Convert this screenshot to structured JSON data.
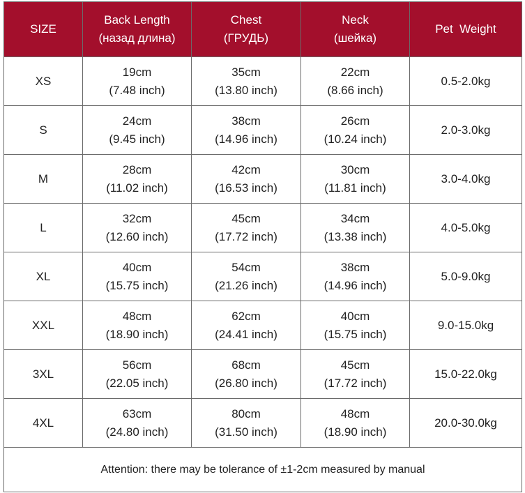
{
  "header": {
    "size": "SIZE",
    "back_length": {
      "line1": "Back Length",
      "line2": "(назад длина)"
    },
    "chest": {
      "line1": "Chest",
      "line2": "(ГРУДЬ)"
    },
    "neck": {
      "line1": "Neck",
      "line2": "(шейка)"
    },
    "pet_weight": "Pet  Weight"
  },
  "rows": [
    {
      "size": "XS",
      "back": {
        "cm": "19cm",
        "inch": "(7.48 inch)"
      },
      "chest": {
        "cm": "35cm",
        "inch": "(13.80 inch)"
      },
      "neck": {
        "cm": "22cm",
        "inch": "(8.66 inch)"
      },
      "weight": "0.5-2.0kg"
    },
    {
      "size": "S",
      "back": {
        "cm": "24cm",
        "inch": "(9.45 inch)"
      },
      "chest": {
        "cm": "38cm",
        "inch": "(14.96 inch)"
      },
      "neck": {
        "cm": "26cm",
        "inch": "(10.24 inch)"
      },
      "weight": "2.0-3.0kg"
    },
    {
      "size": "M",
      "back": {
        "cm": "28cm",
        "inch": "(11.02 inch)"
      },
      "chest": {
        "cm": "42cm",
        "inch": "(16.53 inch)"
      },
      "neck": {
        "cm": "30cm",
        "inch": "(11.81 inch)"
      },
      "weight": "3.0-4.0kg"
    },
    {
      "size": "L",
      "back": {
        "cm": "32cm",
        "inch": "(12.60 inch)"
      },
      "chest": {
        "cm": "45cm",
        "inch": "(17.72 inch)"
      },
      "neck": {
        "cm": "34cm",
        "inch": "(13.38 inch)"
      },
      "weight": "4.0-5.0kg"
    },
    {
      "size": "XL",
      "back": {
        "cm": "40cm",
        "inch": "(15.75 inch)"
      },
      "chest": {
        "cm": "54cm",
        "inch": "(21.26 inch)"
      },
      "neck": {
        "cm": "38cm",
        "inch": "(14.96 inch)"
      },
      "weight": "5.0-9.0kg"
    },
    {
      "size": "XXL",
      "back": {
        "cm": "48cm",
        "inch": "(18.90 inch)"
      },
      "chest": {
        "cm": "62cm",
        "inch": "(24.41 inch)"
      },
      "neck": {
        "cm": "40cm",
        "inch": "(15.75 inch)"
      },
      "weight": "9.0-15.0kg"
    },
    {
      "size": "3XL",
      "back": {
        "cm": "56cm",
        "inch": "(22.05 inch)"
      },
      "chest": {
        "cm": "68cm",
        "inch": "(26.80 inch)"
      },
      "neck": {
        "cm": "45cm",
        "inch": "(17.72 inch)"
      },
      "weight": "15.0-22.0kg"
    },
    {
      "size": "4XL",
      "back": {
        "cm": "63cm",
        "inch": "(24.80 inch)"
      },
      "chest": {
        "cm": "80cm",
        "inch": "(31.50 inch)"
      },
      "neck": {
        "cm": "48cm",
        "inch": "(18.90 inch)"
      },
      "weight": "20.0-30.0kg"
    }
  ],
  "footer": {
    "attention": "Attention: there may be tolerance of ±1-2cm measured by manual"
  },
  "colors": {
    "header_bg": "#a30f2c",
    "header_text": "#ffffff",
    "border": "#6a6a6a"
  }
}
